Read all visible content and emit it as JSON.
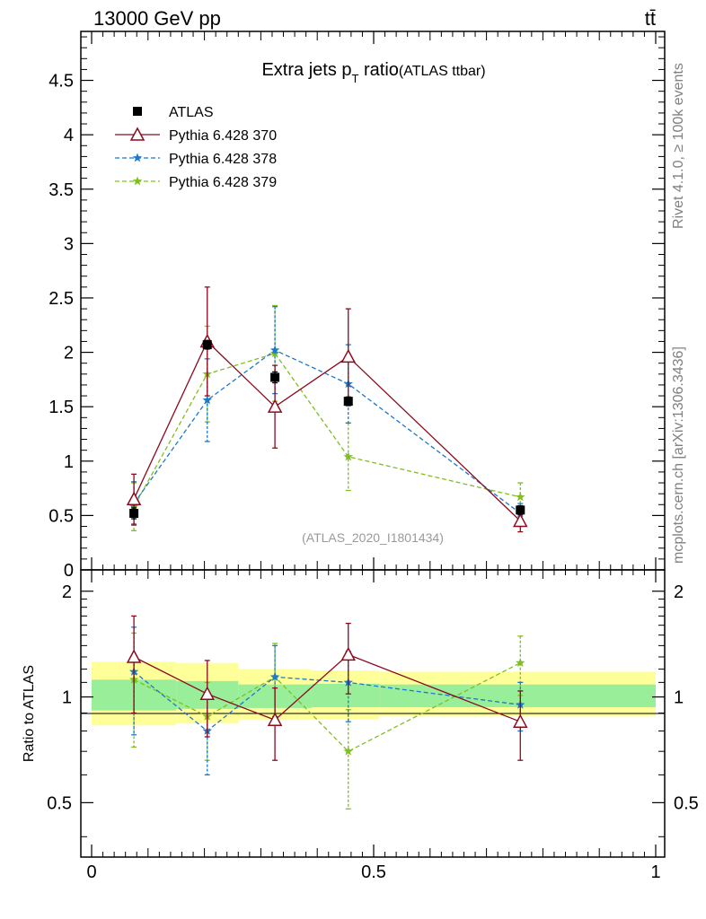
{
  "header": {
    "left": "13000 GeV pp",
    "right": "tt̄"
  },
  "side_labels": {
    "rivet": "Rivet 4.1.0, ≥ 100k events",
    "mcplots": "mcplots.cern.ch [arXiv:1306.3436]"
  },
  "chart_data": [
    {
      "id": "main",
      "type": "scatter",
      "title": "Extra jets p",
      "title_sub": "T",
      "title_tail": " ratio",
      "title_note": "(ATLAS ttbar)",
      "analysis": "(ATLAS_2020_I1801434)",
      "xlim": [
        0,
        1
      ],
      "ylim": [
        0,
        4.95
      ],
      "yticks": [
        0.5,
        1,
        1.5,
        2,
        2.5,
        3,
        3.5,
        4,
        4.5
      ],
      "ytick_labels": [
        "0.5",
        "1",
        "1.5",
        "2",
        "2.5",
        "3",
        "3.5",
        "4",
        "4.5"
      ],
      "axis_zero_label": "0",
      "legend_position": "top-left",
      "series": [
        {
          "name": "ATLAS",
          "marker": "square",
          "color": "#000000",
          "x": [
            0.075,
            0.205,
            0.325,
            0.455,
            0.76
          ],
          "y": [
            0.52,
            2.07,
            1.77,
            1.55,
            0.55
          ],
          "yerr": [
            0.05,
            0.04,
            0.05,
            0.04,
            0.04
          ]
        },
        {
          "name": "Pythia 6.428 370",
          "marker": "triangle",
          "line": "solid",
          "color": "#8b0a1e",
          "x": [
            0.075,
            0.205,
            0.325,
            0.455,
            0.76
          ],
          "y": [
            0.65,
            2.1,
            1.5,
            1.96,
            0.45
          ],
          "yerr": [
            0.23,
            0.5,
            0.38,
            0.44,
            0.1
          ]
        },
        {
          "name": "Pythia 6.428 378",
          "marker": "star",
          "line": "dashed",
          "color": "#1f78c8",
          "x": [
            0.075,
            0.205,
            0.325,
            0.455,
            0.76
          ],
          "y": [
            0.61,
            1.56,
            2.02,
            1.71,
            0.52
          ],
          "yerr": [
            0.2,
            0.38,
            0.4,
            0.36,
            0.09
          ]
        },
        {
          "name": "Pythia 6.428 379",
          "marker": "star",
          "line": "dashed",
          "color": "#7fbf1f",
          "x": [
            0.075,
            0.205,
            0.325,
            0.455,
            0.76
          ],
          "y": [
            0.58,
            1.8,
            1.99,
            1.04,
            0.67
          ],
          "yerr": [
            0.22,
            0.44,
            0.44,
            0.31,
            0.13
          ]
        }
      ]
    },
    {
      "id": "ratio",
      "type": "scatter",
      "ylabel": "Ratio to ATLAS",
      "xlim": [
        0,
        1
      ],
      "ylim": [
        0.35,
        2.3
      ],
      "yticks": [
        0.5,
        1,
        2
      ],
      "ytick_labels": [
        "0.5",
        "1",
        "2"
      ],
      "xticks": [
        0,
        0.5,
        1
      ],
      "xtick_labels": [
        "0",
        "0.5",
        "1"
      ],
      "bands": [
        {
          "x0": 0.0,
          "x1": 0.15,
          "inner": [
            0.915,
            1.12
          ],
          "outer": [
            0.83,
            1.26
          ]
        },
        {
          "x0": 0.15,
          "x1": 0.26,
          "inner": [
            0.925,
            1.11
          ],
          "outer": [
            0.84,
            1.25
          ]
        },
        {
          "x0": 0.26,
          "x1": 0.39,
          "inner": [
            0.93,
            1.085
          ],
          "outer": [
            0.86,
            1.2
          ]
        },
        {
          "x0": 0.39,
          "x1": 0.51,
          "inner": [
            0.935,
            1.09
          ],
          "outer": [
            0.865,
            1.19
          ]
        },
        {
          "x0": 0.51,
          "x1": 1.0,
          "inner": [
            0.935,
            1.085
          ],
          "outer": [
            0.88,
            1.18
          ]
        }
      ],
      "series": [
        {
          "name": "Pythia 6.428 370",
          "marker": "triangle",
          "line": "solid",
          "color": "#8b0a1e",
          "x": [
            0.075,
            0.205,
            0.325,
            0.455,
            0.76
          ],
          "y": [
            1.3,
            1.02,
            0.86,
            1.32,
            0.85
          ],
          "yerr": [
            0.4,
            0.25,
            0.2,
            0.3,
            0.19
          ]
        },
        {
          "name": "Pythia 6.428 378",
          "marker": "star",
          "line": "dashed",
          "color": "#1f78c8",
          "x": [
            0.075,
            0.205,
            0.325,
            0.455,
            0.76
          ],
          "y": [
            1.18,
            0.8,
            1.14,
            1.1,
            0.95
          ],
          "yerr": [
            0.4,
            0.2,
            0.26,
            0.25,
            0.15
          ]
        },
        {
          "name": "Pythia 6.428 379",
          "marker": "star",
          "line": "dashed",
          "color": "#7fbf1f",
          "x": [
            0.075,
            0.205,
            0.325,
            0.455,
            0.76
          ],
          "y": [
            1.12,
            0.88,
            1.14,
            0.7,
            1.25
          ],
          "yerr": [
            0.4,
            0.22,
            0.28,
            0.22,
            0.24
          ]
        }
      ]
    }
  ]
}
